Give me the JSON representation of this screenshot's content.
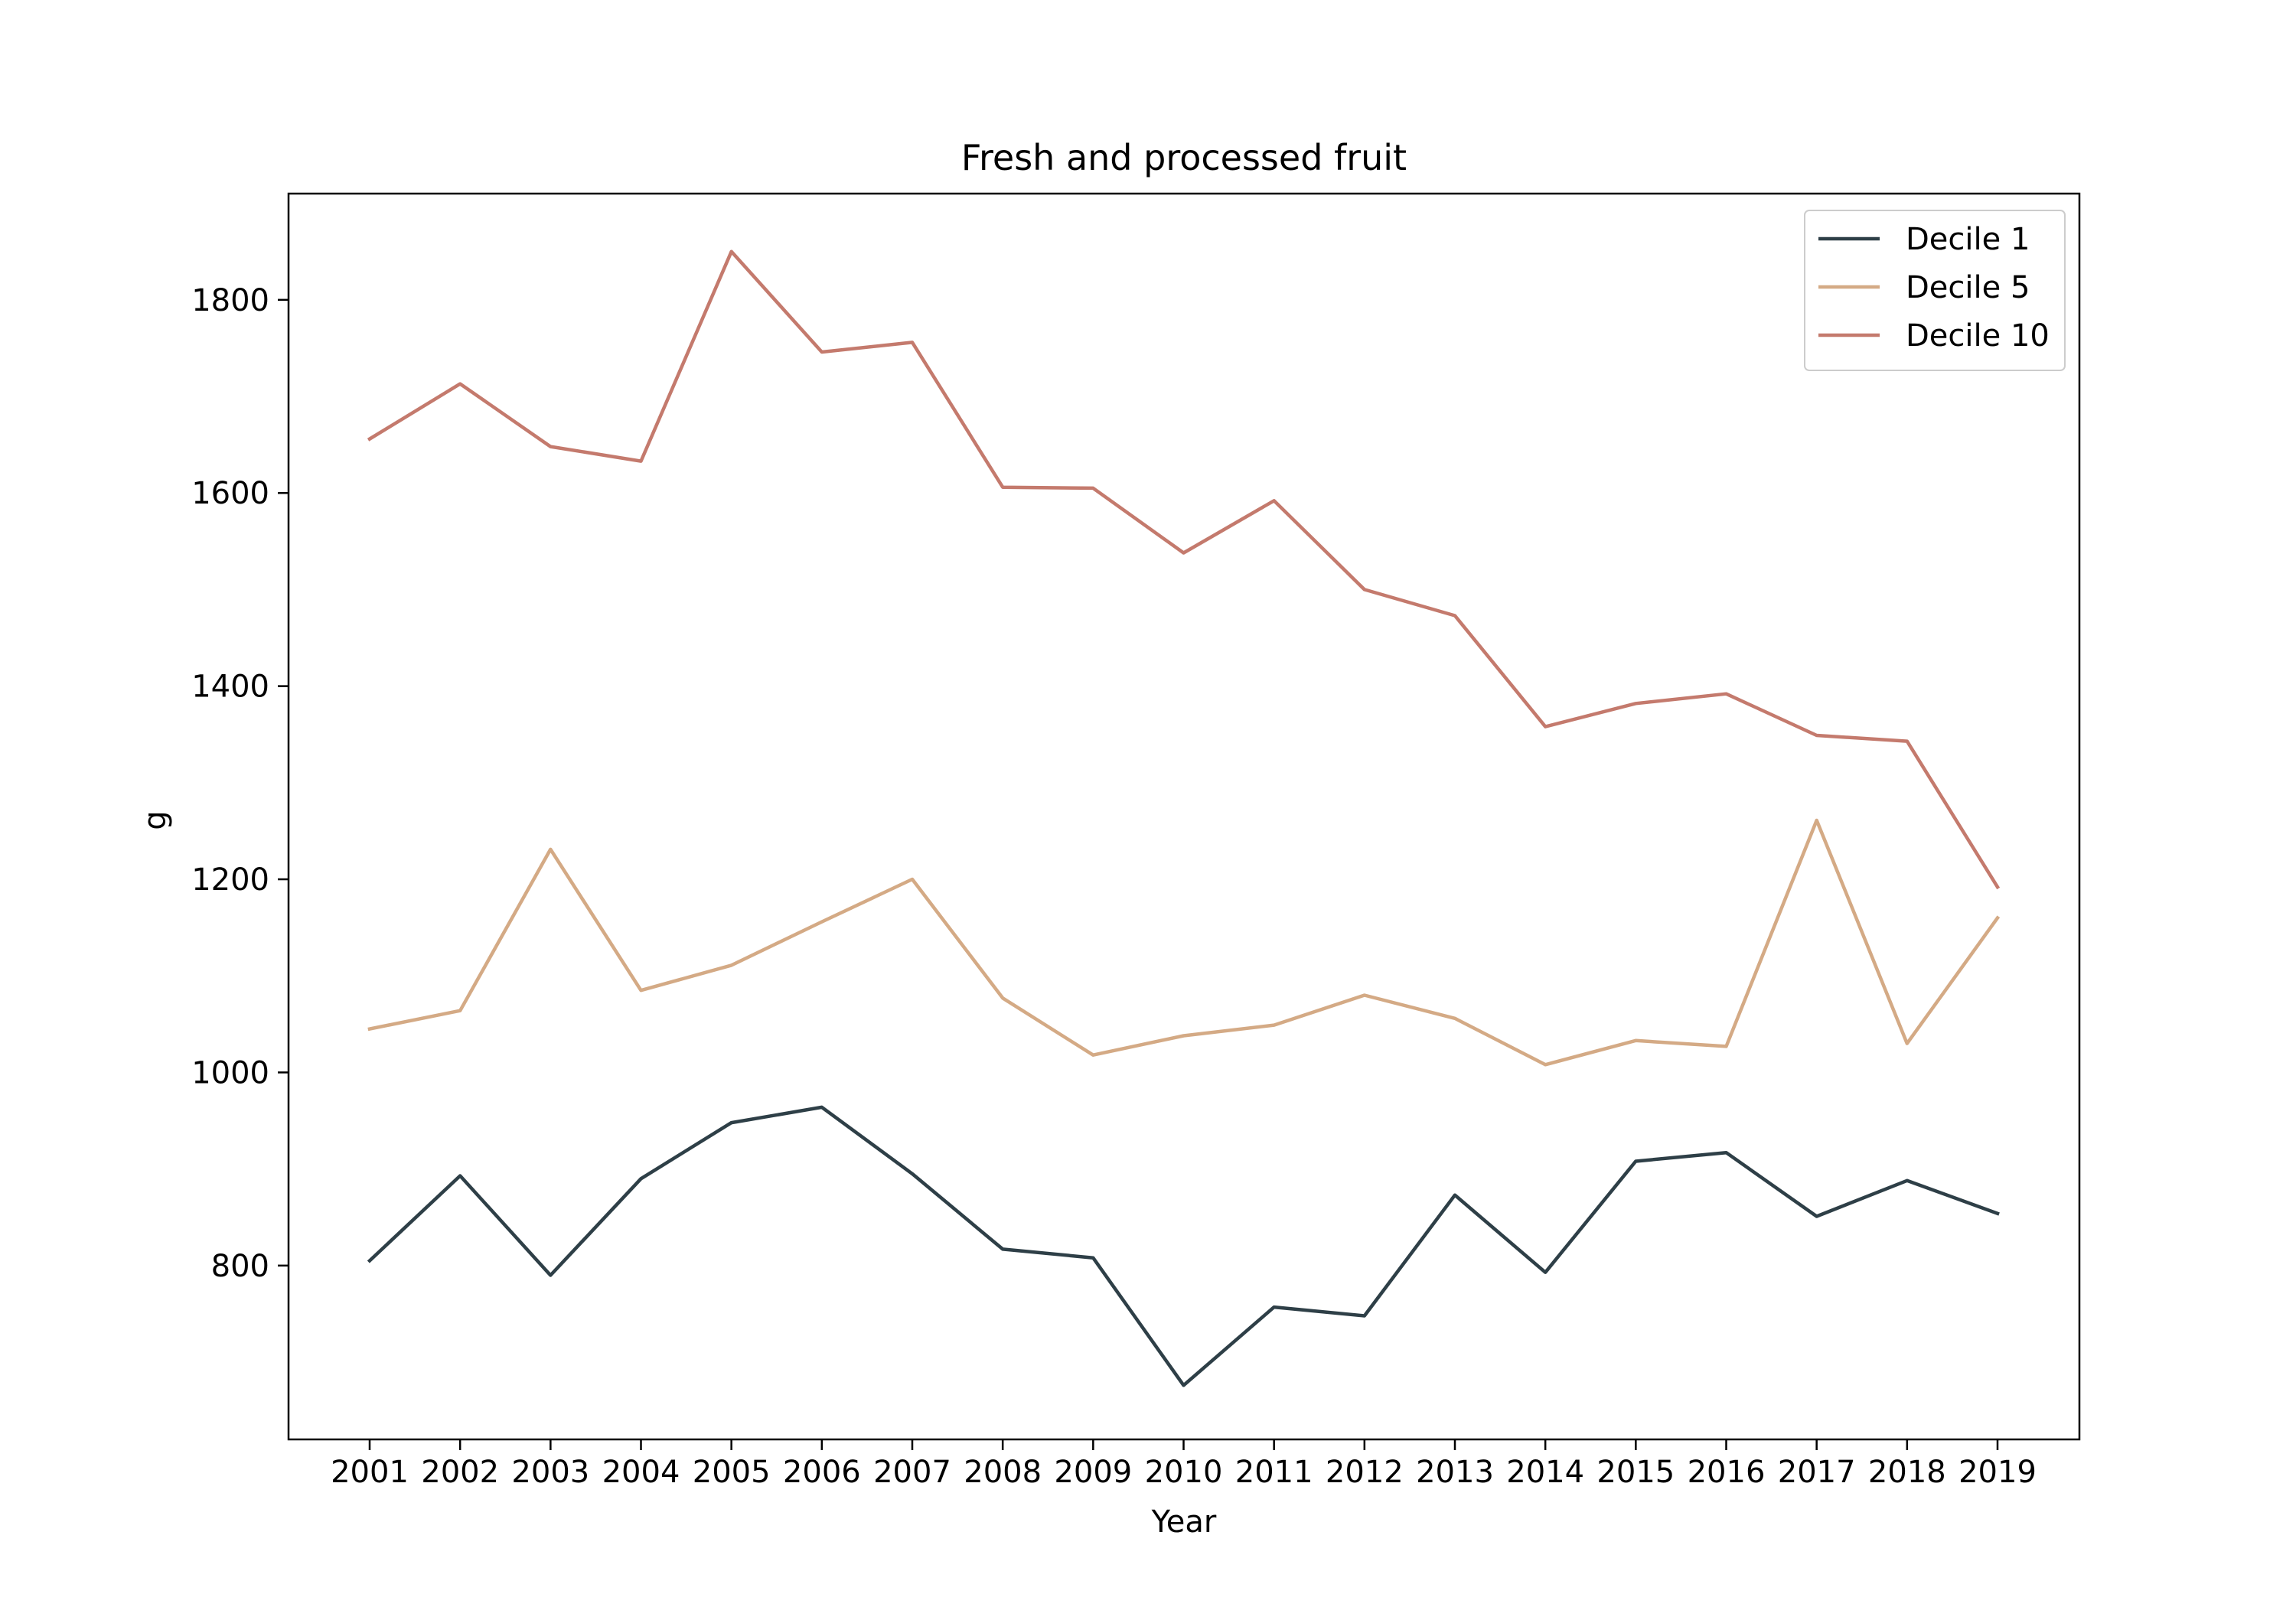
{
  "chart_data": {
    "type": "line",
    "title": "Fresh and processed fruit",
    "xlabel": "Year",
    "ylabel": "g",
    "categories": [
      "2001",
      "2002",
      "2003",
      "2004",
      "2005",
      "2006",
      "2007",
      "2008",
      "2009",
      "2010",
      "2011",
      "2012",
      "2013",
      "2014",
      "2015",
      "2016",
      "2017",
      "2018",
      "2019"
    ],
    "ylim": [
      620,
      1910
    ],
    "yticks": [
      800,
      1000,
      1200,
      1400,
      1600,
      1800
    ],
    "grid": false,
    "legend_position": "top-right",
    "series": [
      {
        "name": "Decile 1",
        "color": "#2e3f47",
        "values": [
          805,
          893,
          790,
          890,
          948,
          964,
          895,
          817,
          808,
          676,
          757,
          748,
          873,
          793,
          908,
          917,
          851,
          888,
          854
        ]
      },
      {
        "name": "Decile 5",
        "color": "#d4aa85",
        "values": [
          1045,
          1064,
          1231,
          1085,
          1111,
          1156,
          1200,
          1077,
          1018,
          1038,
          1049,
          1080,
          1056,
          1008,
          1033,
          1027,
          1261,
          1030,
          1160
        ]
      },
      {
        "name": "Decile 10",
        "color": "#c47a6d",
        "values": [
          1656,
          1713,
          1648,
          1633,
          1850,
          1746,
          1756,
          1606,
          1605,
          1538,
          1592,
          1500,
          1473,
          1358,
          1382,
          1392,
          1349,
          1343,
          1192
        ]
      }
    ]
  }
}
